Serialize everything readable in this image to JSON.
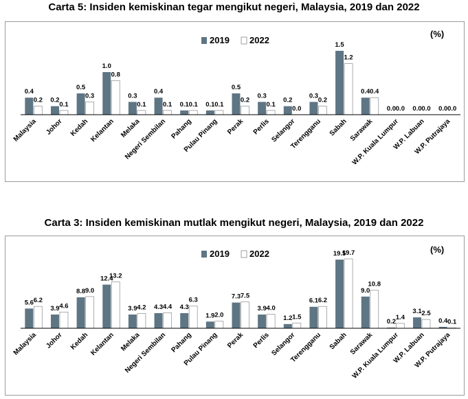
{
  "chart_data": [
    {
      "type": "bar",
      "title": "Carta 5: Insiden kemiskinan tegar mengikut negeri, Malaysia, 2019 dan 2022",
      "unit": "(%)",
      "categories": [
        "Malaysia",
        "Johor",
        "Kedah",
        "Kelantan",
        "Melaka",
        "Negeri Sembilan",
        "Pahang",
        "Pulau Pinang",
        "Perak",
        "Perlis",
        "Selangor",
        "Terengganu",
        "Sabah",
        "Sarawak",
        "W.P. Kuala Lumpur",
        "W.P. Labuan",
        "W.P. Putrajaya"
      ],
      "series": [
        {
          "name": "2019",
          "color": "#5e7584",
          "values": [
            0.4,
            0.2,
            0.5,
            1.0,
            0.3,
            0.4,
            0.1,
            0.1,
            0.5,
            0.3,
            0.2,
            0.3,
            1.5,
            0.4,
            0.0,
            0.0,
            0.0
          ],
          "labels": [
            "0.4",
            "0.2",
            "0.5",
            "1.0",
            "0.3",
            "0.4",
            "0.1",
            "0.1",
            "0.5",
            "0.3",
            "0.2",
            "0.3",
            "1.5",
            "0.4",
            "0.0",
            "0.0",
            "0.0"
          ]
        },
        {
          "name": "2022",
          "color": "#ffffff",
          "values": [
            0.2,
            0.1,
            0.3,
            0.8,
            0.1,
            0.1,
            0.1,
            0.1,
            0.2,
            0.1,
            0.0,
            0.2,
            1.2,
            0.4,
            0.0,
            0.0,
            0.0
          ],
          "labels": [
            "0.2",
            "0.1",
            "0.3",
            "0.8",
            "0.1",
            "0.1",
            "0.1",
            "0.1",
            "0.2",
            "0.1",
            "0.0",
            "0.2",
            "1.2",
            "0.4",
            "0.0",
            "0.0",
            "0.0"
          ]
        }
      ],
      "ylim": [
        0,
        1.5
      ],
      "legend": "top-center",
      "grid": false
    },
    {
      "type": "bar",
      "title": "Carta 3: Insiden kemiskinan mutlak mengikut negeri, Malaysia, 2019 dan 2022",
      "unit": "(%)",
      "categories": [
        "Malaysia",
        "Johor",
        "Kedah",
        "Kelantan",
        "Melaka",
        "Negeri Sembilan",
        "Pahang",
        "Pulau Pinang",
        "Perak",
        "Perlis",
        "Selangor",
        "Terengganu",
        "Sabah",
        "Sarawak",
        "W.P. Kuala Lumpur",
        "W.P. Labuan",
        "W.P. Putrajaya"
      ],
      "series": [
        {
          "name": "2019",
          "color": "#5e7584",
          "values": [
            5.6,
            3.9,
            8.8,
            12.4,
            3.9,
            4.3,
            4.3,
            1.9,
            7.3,
            3.9,
            1.2,
            6.1,
            19.5,
            9.0,
            0.2,
            3.1,
            0.4
          ],
          "labels": [
            "5.6",
            "3.9",
            "8.8",
            "12.4",
            "3.9",
            "4.3",
            "4.3",
            "1.9",
            "7.3",
            "3.9",
            "1.2",
            "6.1",
            "19.5",
            "9.0",
            "0.2",
            "3.1",
            "0.4"
          ]
        },
        {
          "name": "2022",
          "color": "#ffffff",
          "values": [
            6.2,
            4.6,
            9.0,
            13.2,
            4.2,
            4.4,
            6.3,
            2.0,
            7.5,
            4.0,
            1.5,
            6.2,
            19.7,
            10.8,
            1.4,
            2.5,
            0.1
          ],
          "labels": [
            "6.2",
            "4.6",
            "9.0",
            "13.2",
            "4.2",
            "4.4",
            "6.3",
            "2.0",
            "7.5",
            "4.0",
            "1.5",
            "6.2",
            "19.7",
            "10.8",
            "1.4",
            "2.5",
            "0.1"
          ]
        }
      ],
      "ylim": [
        0,
        19.7
      ],
      "legend": "top-center",
      "grid": false
    }
  ]
}
